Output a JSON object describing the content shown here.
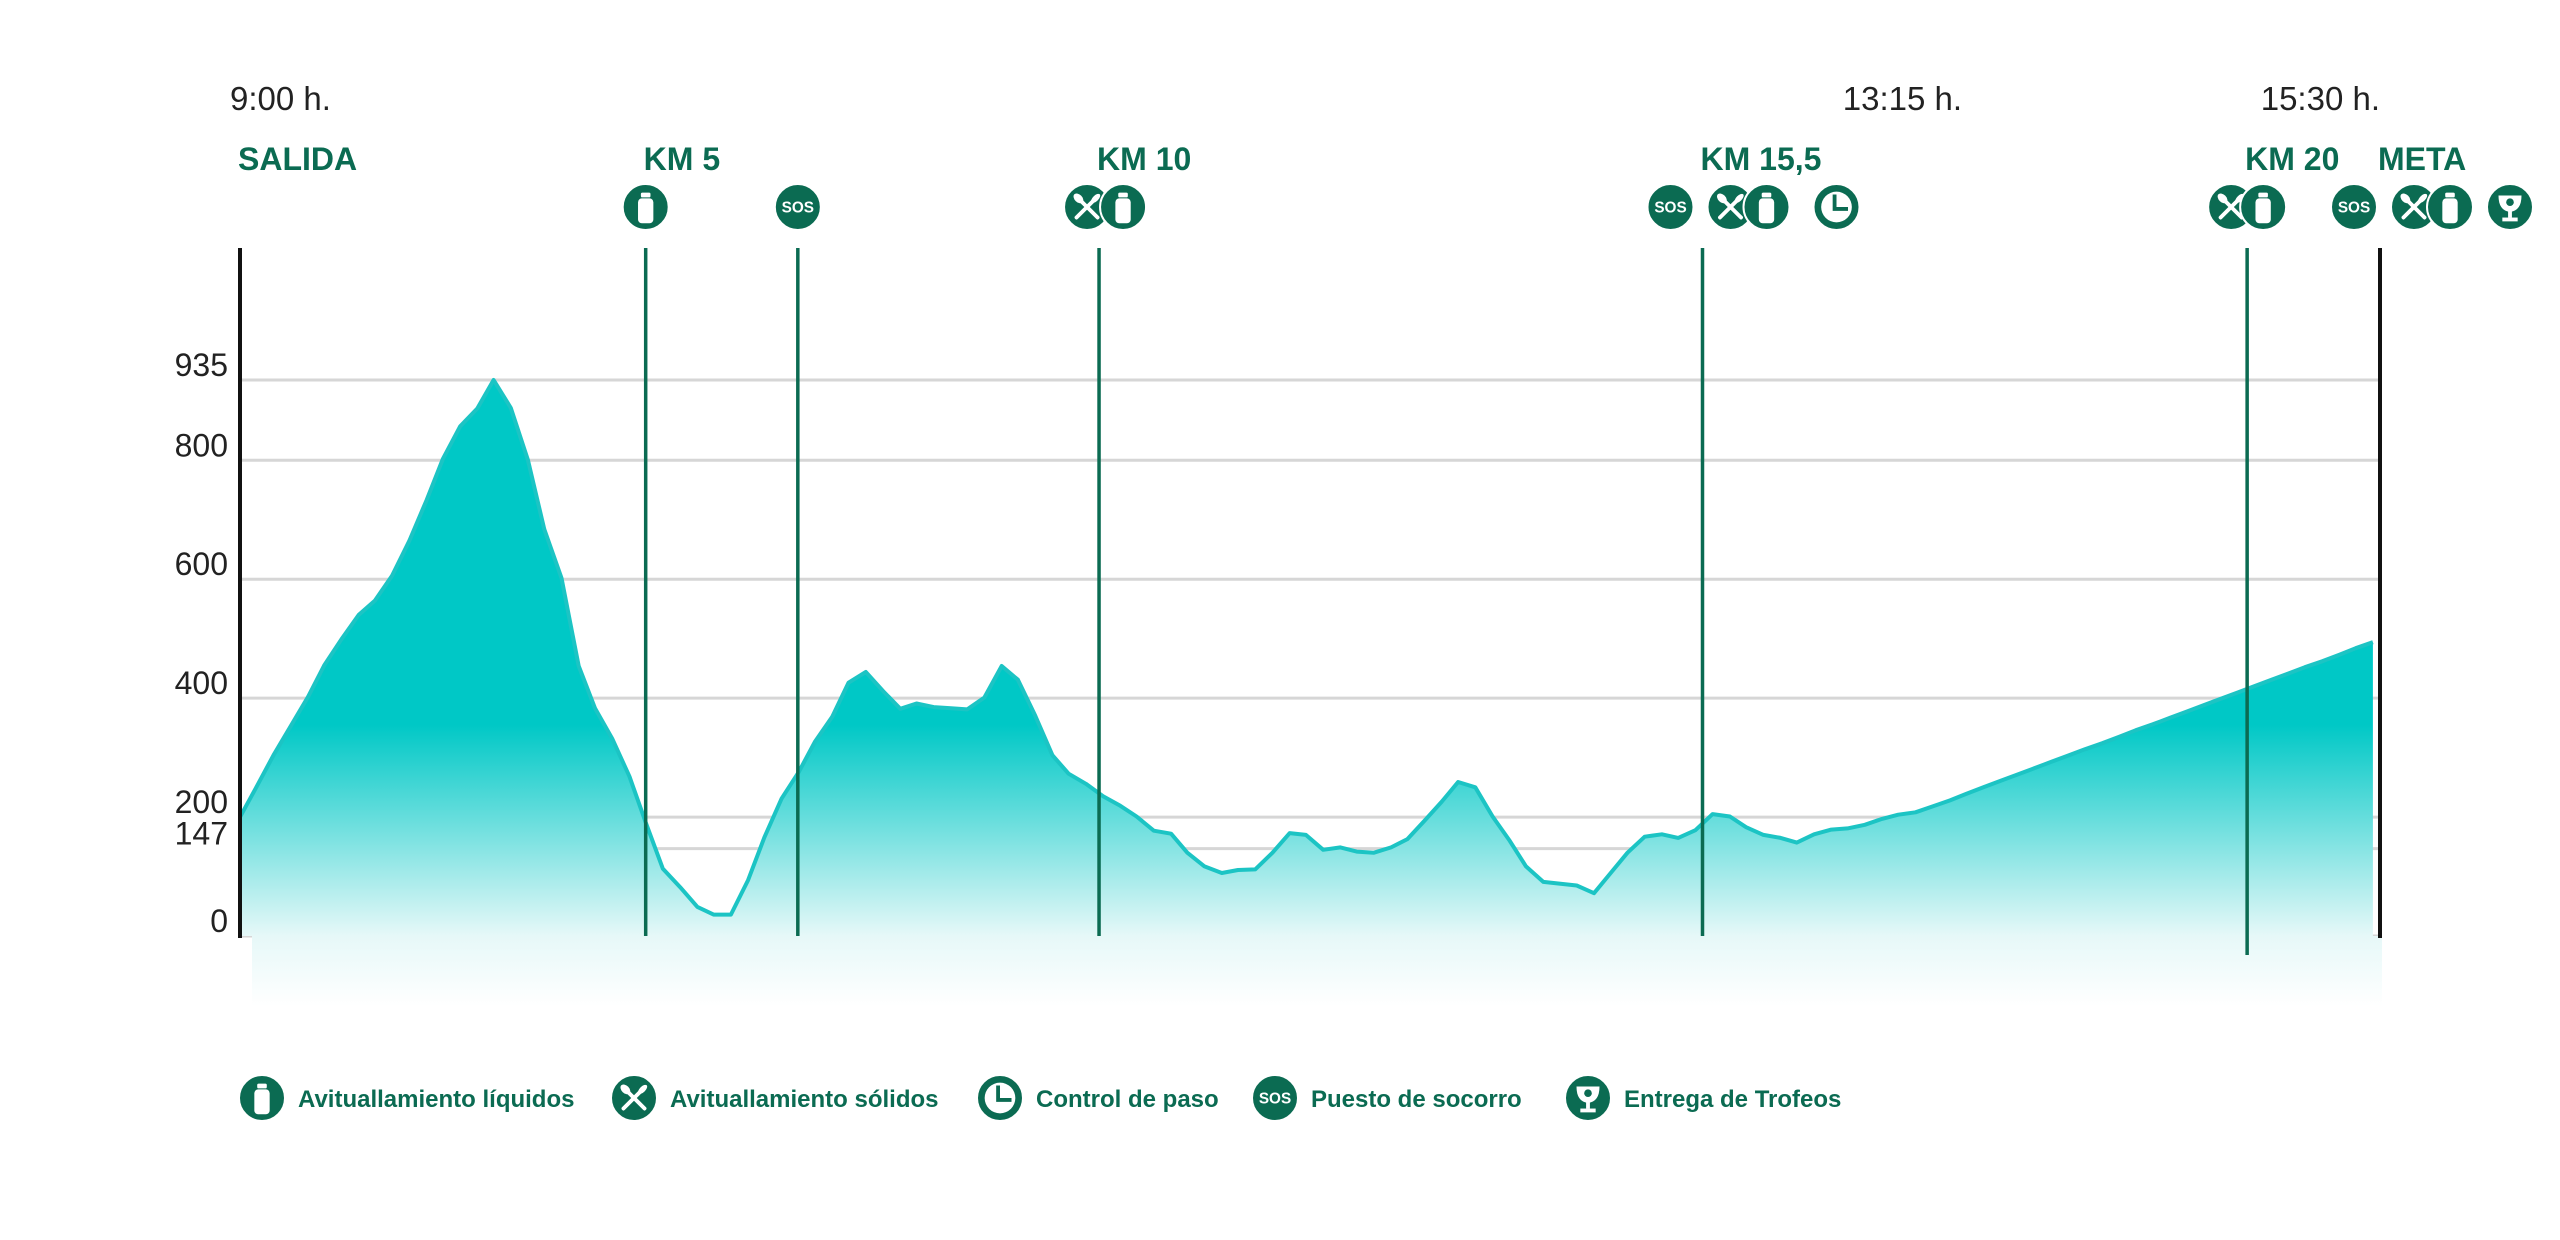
{
  "colors": {
    "brand_green": "#0b6b52",
    "profile_line": "#1cc4c4",
    "profile_fill_top": "#00c8c6",
    "profile_fill_bottom": "#e6f8f8",
    "grid": "#d6d6d6",
    "axis": "#111111",
    "text": "#222222"
  },
  "times": [
    {
      "label": "9:00 h.",
      "km": 0
    },
    {
      "label": "13:15 h.",
      "km": 15.5
    },
    {
      "label": "15:30 h.",
      "km": 21.1
    }
  ],
  "chart_data": {
    "type": "area",
    "title": "",
    "xlabel": "",
    "ylabel": "",
    "ylim": [
      0,
      1200
    ],
    "xlim": [
      0,
      21.1
    ],
    "y_ticks": [
      0,
      147,
      200,
      400,
      600,
      800,
      935
    ],
    "grid": true,
    "checkpoints": [
      {
        "label": "SALIDA",
        "km": 0,
        "icons": []
      },
      {
        "label": "KM 5",
        "km": 4.0,
        "icons": [
          "bottle-icon"
        ]
      },
      {
        "label": "",
        "km": 5.5,
        "icons": [
          "sos-icon"
        ]
      },
      {
        "label": "KM 10",
        "km": 8.47,
        "icons": [
          "cutlery-icon",
          "bottle-icon"
        ]
      },
      {
        "label": "KM 15,5",
        "km": 14.42,
        "icons": [
          "sos-icon",
          "cutlery-icon",
          "bottle-icon",
          "clock-icon"
        ]
      },
      {
        "label": "KM 20",
        "km": 19.79,
        "icons": [
          "cutlery-icon",
          "bottle-icon"
        ]
      },
      {
        "label": "META",
        "km": 21.1,
        "icons": [
          "sos-icon",
          "cutlery-icon",
          "bottle-icon",
          "trophy-icon"
        ]
      }
    ],
    "series": [
      {
        "x": [
          0.0,
          0.17,
          0.33,
          0.5,
          0.67,
          0.83,
          1.0,
          1.17,
          1.33,
          1.5,
          1.67,
          1.84,
          2.0,
          2.17,
          2.34,
          2.5,
          2.67,
          2.84,
          3.0,
          3.17,
          3.34,
          3.5,
          3.67,
          3.84,
          4.0,
          4.17,
          4.34,
          4.51,
          4.67,
          4.84,
          5.01,
          5.17,
          5.34,
          5.51,
          5.67,
          5.84,
          6.0,
          6.17,
          6.34,
          6.51,
          6.67,
          6.84,
          7.01,
          7.17,
          7.34,
          7.51,
          7.67,
          7.84,
          8.01,
          8.17,
          8.34,
          8.51,
          8.68,
          8.84,
          9.01,
          9.18,
          9.34,
          9.51,
          9.68,
          9.84,
          10.01,
          10.18,
          10.35,
          10.51,
          10.68,
          10.85,
          11.01,
          11.18,
          11.35,
          11.51,
          11.68,
          11.85,
          12.01,
          12.18,
          12.35,
          12.52,
          12.68,
          12.85,
          13.02,
          13.18,
          13.35,
          13.52,
          13.68,
          13.85,
          14.02,
          14.18,
          14.35,
          14.52,
          14.69,
          14.85,
          15.02,
          15.19,
          15.35,
          15.52,
          15.69,
          15.85,
          16.02,
          16.19,
          16.35,
          16.52,
          16.69,
          16.86,
          17.02,
          17.19,
          17.36,
          17.52,
          17.69,
          17.86,
          18.02,
          18.19,
          18.36,
          18.53,
          18.69,
          18.86,
          19.03,
          19.19,
          19.36,
          19.53,
          19.69,
          19.86,
          20.03,
          20.19,
          20.36,
          20.53,
          20.7,
          20.86,
          21.03
        ],
        "y": [
          200,
          253,
          304,
          353,
          402,
          455,
          499,
          540,
          564,
          606,
          665,
          733,
          802,
          857,
          887,
          935,
          888,
          800,
          684,
          602,
          454,
          383,
          332,
          268,
          191,
          113,
          82,
          49,
          36,
          36,
          94,
          166,
          231,
          276,
          327,
          369,
          426,
          444,
          412,
          382,
          391,
          385,
          383,
          381,
          401,
          454,
          431,
          371,
          304,
          273,
          256,
          235,
          219,
          201,
          177,
          172,
          140,
          117,
          106,
          111,
          112,
          140,
          173,
          170,
          145,
          149,
          142,
          140,
          149,
          163,
          194,
          226,
          259,
          250,
          201,
          160,
          117,
          91,
          88,
          85,
          72,
          107,
          140,
          167,
          171,
          165,
          178,
          205,
          201,
          183,
          170,
          165,
          157,
          171,
          179,
          181,
          187,
          197,
          204,
          208,
          218,
          228,
          239,
          250,
          261,
          271,
          282,
          293,
          303,
          314,
          324,
          335,
          346,
          356,
          367,
          377,
          388,
          399,
          409,
          420,
          431,
          441,
          452,
          462,
          473,
          484,
          494
        ]
      }
    ]
  },
  "legend": [
    {
      "icon": "bottle-icon",
      "label": "Avituallamiento líquidos"
    },
    {
      "icon": "cutlery-icon",
      "label": "Avituallamiento sólidos"
    },
    {
      "icon": "clock-icon",
      "label": "Control de paso"
    },
    {
      "icon": "sos-icon",
      "label": "Puesto de socorro"
    },
    {
      "icon": "trophy-icon",
      "label": "Entrega de Trofeos"
    }
  ],
  "icon_text": {
    "sos": "SOS"
  }
}
